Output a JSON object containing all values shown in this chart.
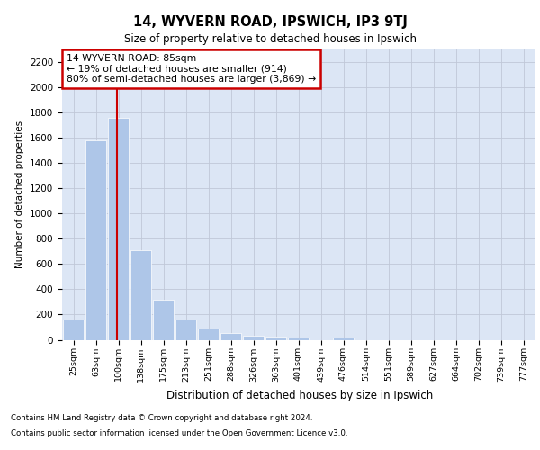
{
  "title1": "14, WYVERN ROAD, IPSWICH, IP3 9TJ",
  "title2": "Size of property relative to detached houses in Ipswich",
  "xlabel": "Distribution of detached houses by size in Ipswich",
  "ylabel": "Number of detached properties",
  "categories": [
    "25sqm",
    "63sqm",
    "100sqm",
    "138sqm",
    "175sqm",
    "213sqm",
    "251sqm",
    "288sqm",
    "326sqm",
    "363sqm",
    "401sqm",
    "439sqm",
    "476sqm",
    "514sqm",
    "551sqm",
    "589sqm",
    "627sqm",
    "664sqm",
    "702sqm",
    "739sqm",
    "777sqm"
  ],
  "values": [
    160,
    1580,
    1760,
    710,
    315,
    160,
    90,
    55,
    35,
    25,
    20,
    0,
    20,
    0,
    0,
    0,
    0,
    0,
    0,
    0,
    0
  ],
  "bar_color": "#aec6e8",
  "vline_color": "#cc0000",
  "annotation_text": "14 WYVERN ROAD: 85sqm\n← 19% of detached houses are smaller (914)\n80% of semi-detached houses are larger (3,869) →",
  "annotation_box_edgecolor": "#cc0000",
  "annotation_box_facecolor": "#ffffff",
  "ylim": [
    0,
    2300
  ],
  "yticks": [
    0,
    200,
    400,
    600,
    800,
    1000,
    1200,
    1400,
    1600,
    1800,
    2000,
    2200
  ],
  "grid_color": "#c0c8d8",
  "background_color": "#dce6f5",
  "footer1": "Contains HM Land Registry data © Crown copyright and database right 2024.",
  "footer2": "Contains public sector information licensed under the Open Government Licence v3.0."
}
